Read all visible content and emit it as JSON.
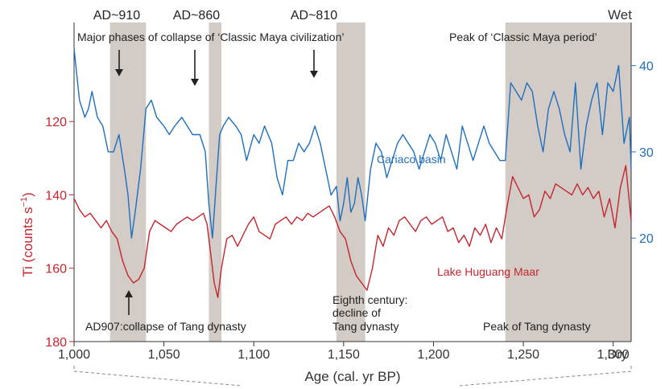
{
  "chart_data": {
    "type": "line",
    "title": "",
    "xlabel": "Age (cal. yr BP)",
    "xlim": [
      1000,
      1310
    ],
    "x_ticks": [
      1000,
      1050,
      1100,
      1150,
      1200,
      1250,
      1300
    ],
    "x_tick_labels": [
      "1,000",
      "1,050",
      "1,100",
      "1,150",
      "1,200",
      "1,250",
      "1,300"
    ],
    "x_end_label": "Dry",
    "left_axis": {
      "label": "Ti (counts s⁻¹)",
      "label_main": "Ti (counts s",
      "label_sup": "−1",
      "label_close": ")",
      "ticks": [
        120,
        140,
        160,
        180
      ],
      "inverted": true,
      "lim": [
        93,
        180
      ],
      "color": "#c4262e"
    },
    "right_axis": {
      "top_label": "Wet",
      "ticks": [
        40,
        30,
        20
      ],
      "lim": [
        8,
        45
      ],
      "color": "#1f6fbf"
    },
    "shaded_regions": [
      {
        "from": 1020,
        "to": 1040,
        "color": "#d2cbc6"
      },
      {
        "from": 1075,
        "to": 1082,
        "color": "#d2cbc6"
      },
      {
        "from": 1146,
        "to": 1162,
        "color": "#d2cbc6"
      },
      {
        "from": 1240,
        "to": 1310,
        "color": "#d2cbc6"
      }
    ],
    "annotations": {
      "ad910": "AD~910",
      "ad860": "AD~860",
      "ad810": "AD~810",
      "maya_collapse": "Major phases of collapse of ‘Classic Maya civilization’",
      "maya_peak": "Peak of ‘Classic Maya period’",
      "tang_collapse": "AD907:collapse of Tang dynasty",
      "eighth_1": "Eighth century:",
      "eighth_2": "decline of",
      "eighth_3": "Tang dynasty",
      "tang_peak": "Peak of Tang dynasty"
    },
    "series": [
      {
        "name": "Cariaco basin",
        "axis": "right",
        "color": "#1f6fbf",
        "x": [
          1000,
          1003,
          1006,
          1008,
          1010,
          1013,
          1016,
          1019,
          1022,
          1025,
          1028,
          1030,
          1032,
          1034,
          1037,
          1040,
          1043,
          1046,
          1050,
          1053,
          1056,
          1060,
          1063,
          1066,
          1070,
          1073,
          1075,
          1077,
          1079,
          1081,
          1083,
          1086,
          1090,
          1093,
          1096,
          1100,
          1103,
          1106,
          1110,
          1113,
          1116,
          1119,
          1122,
          1125,
          1128,
          1131,
          1134,
          1137,
          1140,
          1143,
          1146,
          1148,
          1150,
          1152,
          1154,
          1156,
          1158,
          1160,
          1162,
          1165,
          1168,
          1171,
          1174,
          1177,
          1180,
          1183,
          1186,
          1189,
          1192,
          1195,
          1198,
          1201,
          1204,
          1207,
          1210,
          1213,
          1216,
          1219,
          1222,
          1225,
          1228,
          1231,
          1234,
          1237,
          1240,
          1243,
          1246,
          1249,
          1252,
          1255,
          1258,
          1261,
          1264,
          1267,
          1270,
          1273,
          1276,
          1279,
          1282,
          1285,
          1288,
          1291,
          1294,
          1297,
          1300,
          1303,
          1306,
          1309,
          1310
        ],
        "y": [
          42,
          36,
          34,
          35,
          37,
          34,
          33,
          30,
          30,
          32,
          28,
          25,
          20,
          23,
          28,
          35,
          36,
          34,
          33,
          32,
          33,
          34,
          33,
          32,
          32,
          30,
          24,
          20,
          26,
          32,
          33,
          34,
          33,
          32,
          29,
          32,
          31,
          33,
          31,
          27,
          25,
          29,
          29,
          31,
          30,
          31,
          33,
          31,
          28,
          25,
          26,
          22,
          24,
          27,
          23,
          24,
          27,
          25,
          22,
          28,
          31,
          30,
          27,
          29,
          31,
          32,
          31,
          30,
          28,
          30,
          32,
          31,
          29,
          32,
          30,
          28,
          33,
          31,
          29,
          31,
          33,
          31,
          30,
          29,
          29,
          38,
          37,
          36,
          38,
          37,
          33,
          30,
          35,
          37,
          35,
          32,
          30,
          38,
          28,
          33,
          36,
          38,
          32,
          38,
          37,
          40,
          31,
          34,
          28
        ],
        "label_text": "Cariaco basin"
      },
      {
        "name": "Lake Huguang Maar",
        "axis": "left",
        "color": "#c4262e",
        "x": [
          1000,
          1003,
          1006,
          1009,
          1012,
          1015,
          1018,
          1021,
          1024,
          1027,
          1030,
          1033,
          1036,
          1039,
          1042,
          1045,
          1048,
          1051,
          1054,
          1057,
          1060,
          1063,
          1066,
          1069,
          1072,
          1074,
          1076,
          1078,
          1080,
          1082,
          1085,
          1088,
          1091,
          1094,
          1097,
          1100,
          1103,
          1106,
          1109,
          1112,
          1115,
          1118,
          1121,
          1124,
          1127,
          1130,
          1133,
          1136,
          1139,
          1142,
          1145,
          1148,
          1151,
          1154,
          1157,
          1160,
          1163,
          1166,
          1169,
          1172,
          1175,
          1178,
          1181,
          1184,
          1187,
          1190,
          1193,
          1196,
          1199,
          1202,
          1205,
          1208,
          1211,
          1214,
          1217,
          1220,
          1223,
          1226,
          1229,
          1232,
          1235,
          1238,
          1241,
          1244,
          1247,
          1250,
          1253,
          1256,
          1259,
          1262,
          1265,
          1268,
          1271,
          1274,
          1277,
          1280,
          1283,
          1286,
          1289,
          1292,
          1295,
          1298,
          1301,
          1304,
          1307,
          1310
        ],
        "y": [
          141,
          144,
          146,
          145,
          147,
          149,
          147,
          150,
          152,
          158,
          162,
          164,
          163,
          160,
          150,
          147,
          148,
          149,
          150,
          148,
          147,
          146,
          147,
          146,
          145,
          148,
          156,
          164,
          168,
          160,
          152,
          151,
          154,
          151,
          148,
          146,
          150,
          151,
          152,
          148,
          147,
          146,
          148,
          146,
          147,
          145,
          146,
          145,
          144,
          143,
          146,
          150,
          152,
          158,
          162,
          164,
          166,
          160,
          151,
          154,
          149,
          151,
          147,
          146,
          148,
          150,
          147,
          146,
          148,
          147,
          146,
          150,
          149,
          153,
          151,
          154,
          149,
          151,
          148,
          153,
          149,
          152,
          143,
          135,
          138,
          141,
          140,
          146,
          144,
          139,
          141,
          137,
          138,
          139,
          140,
          137,
          140,
          138,
          141,
          139,
          146,
          141,
          149,
          138,
          132,
          147
        ],
        "label_text": "Lake Huguang Maar"
      }
    ],
    "grid": false,
    "legend": "none"
  }
}
